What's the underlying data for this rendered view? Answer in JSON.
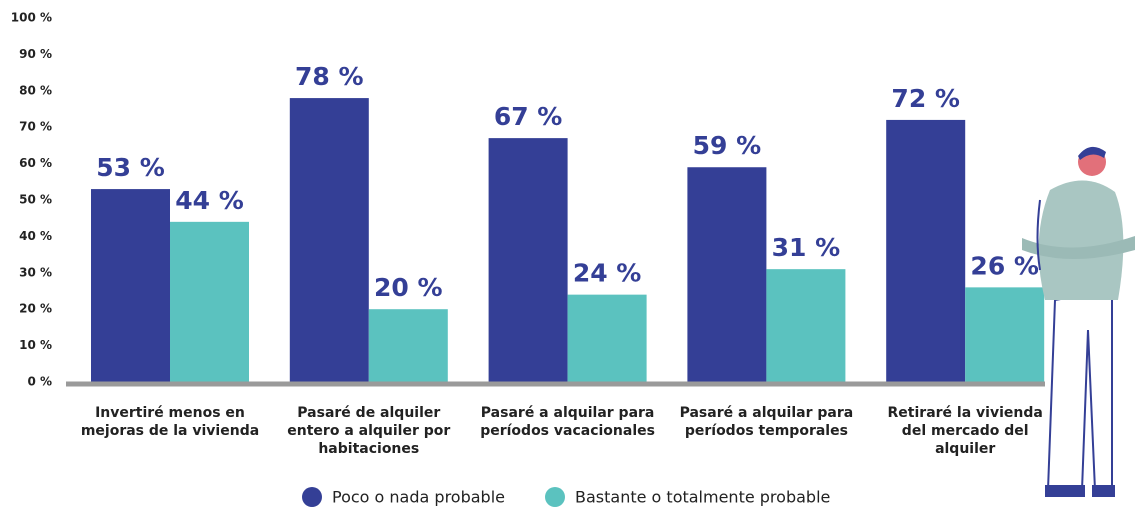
{
  "chart_data": {
    "type": "bar",
    "categories": [
      "Invertiré menos en mejoras de la vivienda",
      "Pasaré de alquiler entero a alquiler por habitaciones",
      "Pasaré a alquilar para períodos vacacionales",
      "Pasaré a alquilar para períodos temporales",
      "Retiraré la vivienda del mercado del alquiler"
    ],
    "series": [
      {
        "name": "Poco o nada probable",
        "color": "#343f96",
        "values": [
          53,
          78,
          67,
          59,
          72
        ],
        "value_labels": [
          "53 %",
          "78 %",
          "67 %",
          "59 %",
          "72 %"
        ]
      },
      {
        "name": "Bastante o totalmente probable",
        "color": "#5bc2bf",
        "values": [
          44,
          20,
          24,
          31,
          26
        ],
        "value_labels": [
          "44 %",
          "20 %",
          "24 %",
          "31 %",
          "26 %"
        ]
      }
    ],
    "ylim": [
      0,
      100
    ],
    "yticks": [
      {
        "value": 0,
        "label": "0 %"
      },
      {
        "value": 10,
        "label": "10 %"
      },
      {
        "value": 20,
        "label": "20 %"
      },
      {
        "value": 30,
        "label": "30 %"
      },
      {
        "value": 40,
        "label": "40 %"
      },
      {
        "value": 50,
        "label": "50 %"
      },
      {
        "value": 60,
        "label": "60 %"
      },
      {
        "value": 70,
        "label": "70 %"
      },
      {
        "value": 80,
        "label": "80 %"
      },
      {
        "value": 90,
        "label": "90 %"
      },
      {
        "value": 100,
        "label": "100 %"
      }
    ],
    "grid": false
  }
}
